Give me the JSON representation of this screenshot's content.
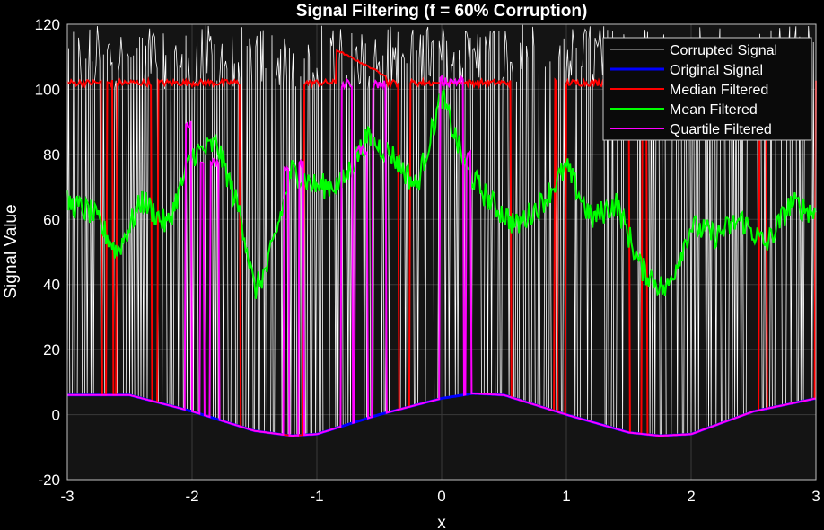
{
  "chart_data": {
    "type": "line",
    "title": "Signal Filtering (f = 60% Corruption)",
    "xlabel": "x",
    "ylabel": "Signal Value",
    "xlim": [
      -3,
      3
    ],
    "ylim": [
      -20,
      120
    ],
    "xticks": [
      "-3",
      "-2",
      "-1",
      "0",
      "1",
      "2",
      "3"
    ],
    "yticks": [
      "-20",
      "0",
      "20",
      "40",
      "60",
      "80",
      "100",
      "120"
    ],
    "grid": true,
    "legend_position": "top-right",
    "background": "#141414",
    "series": [
      {
        "name": "Corrupted Signal",
        "color": "#ffffff",
        "width": 0.8,
        "description": "60% of samples replaced by impulse noise (~100-120), rest equal to the original signal"
      },
      {
        "name": "Original Signal",
        "color": "#0000ff",
        "width": 3,
        "x": [
          -3,
          -2.5,
          -2,
          -1.5,
          -1.2,
          -1,
          -0.5,
          0,
          0.25,
          0.5,
          1,
          1.5,
          1.75,
          2,
          2.5,
          3
        ],
        "y": [
          6,
          6,
          1,
          -5,
          -6.5,
          -6,
          0,
          5,
          6.5,
          6,
          0,
          -5.5,
          -6.5,
          -6,
          1,
          5
        ]
      },
      {
        "name": "Median Filtered",
        "color": "#ff0000",
        "width": 2,
        "description": "Mostly ~102 with dips to the original signal; ~112 plateau near x=-0.8 to -0.5, ~102 peak near x=0"
      },
      {
        "name": "Mean Filtered",
        "color": "#00ff00",
        "width": 2,
        "x": [
          -3,
          -2.8,
          -2.6,
          -2.4,
          -2.2,
          -2.0,
          -1.8,
          -1.6,
          -1.5,
          -1.4,
          -1.2,
          -1.0,
          -0.8,
          -0.6,
          -0.4,
          -0.2,
          0,
          0.2,
          0.4,
          0.6,
          0.8,
          1.0,
          1.2,
          1.4,
          1.6,
          1.8,
          2.0,
          2.2,
          2.4,
          2.6,
          2.8,
          3.0
        ],
        "y": [
          65,
          62,
          50,
          66,
          58,
          80,
          83,
          60,
          38,
          45,
          75,
          70,
          71,
          85,
          80,
          70,
          98,
          75,
          65,
          58,
          65,
          76,
          60,
          65,
          45,
          38,
          58,
          55,
          60,
          52,
          65,
          62
        ]
      },
      {
        "name": "Quartile Filtered",
        "color": "#ff00ff",
        "width": 2,
        "description": "Follows original signal with spikes to ~75-100 near x=-2.05, -1.9, -1.25, -0.8 to -0.45, 0 to 0.2"
      }
    ]
  }
}
